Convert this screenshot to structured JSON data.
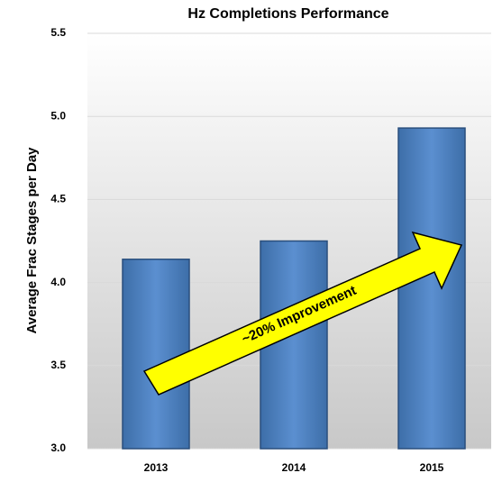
{
  "chart_data": {
    "type": "bar",
    "title": "Hz Completions Performance",
    "y_label": "Average Frac Stages per Day",
    "annotation": "~20% Improvement",
    "categories": [
      "2013",
      "2014",
      "2015"
    ],
    "values": [
      4.14,
      4.25,
      4.93
    ],
    "color": "#4f81bd",
    "ylim": [
      3.0,
      5.5
    ],
    "yticks": [
      {
        "value": 3.0,
        "label": "3.0"
      },
      3.5,
      {
        "value": 4.0,
        "label": "4.0"
      },
      4.5,
      {
        "value": 5.0,
        "label": "5.0"
      },
      5.5
    ],
    "grid": true
  }
}
